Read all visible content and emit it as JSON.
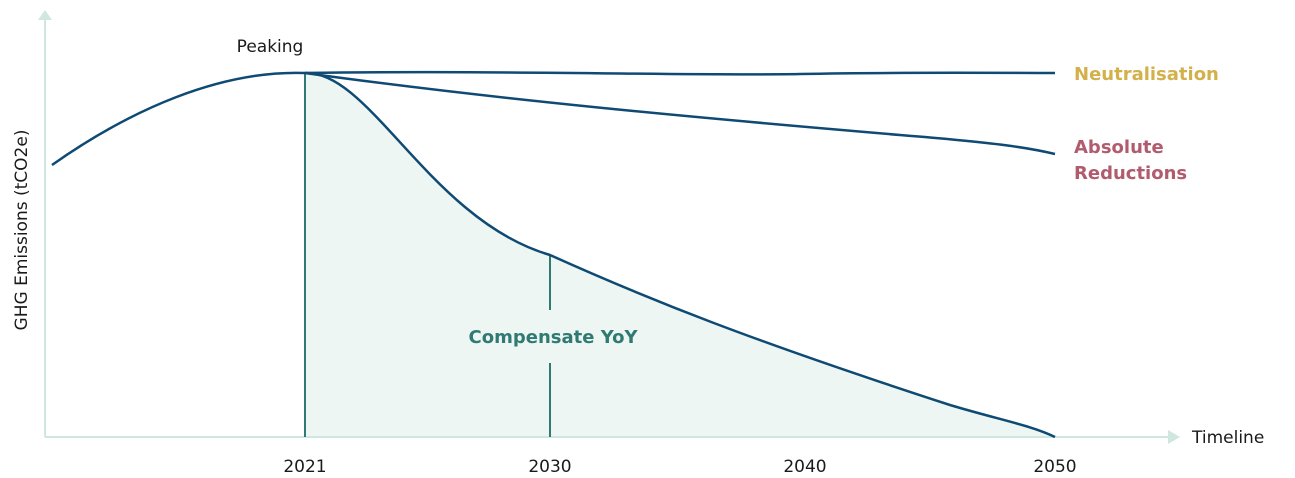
{
  "chart_data": {
    "type": "line",
    "ylabel": "GHG Emissions (tCO2e)",
    "xlabel": "Timeline",
    "x_ticks": [
      "2021",
      "2030",
      "2040",
      "2050"
    ],
    "annotations": {
      "peak": "Peaking",
      "area": "Compensate YoY"
    },
    "series": [
      {
        "name": "Neutralisation",
        "color": "#d4b04a",
        "line_color": "#0e4a73"
      },
      {
        "name": "Absolute Reductions",
        "color": "#b05c6e",
        "line_color": "#0e4a73"
      }
    ],
    "series_label_lines": {
      "absolute": [
        "Absolute",
        "Reductions"
      ]
    },
    "colors": {
      "axis": "#cfe7df",
      "line": "#0e4a73",
      "fill": "#edf6f2",
      "accent": "#2f7a72"
    },
    "grid": false
  }
}
